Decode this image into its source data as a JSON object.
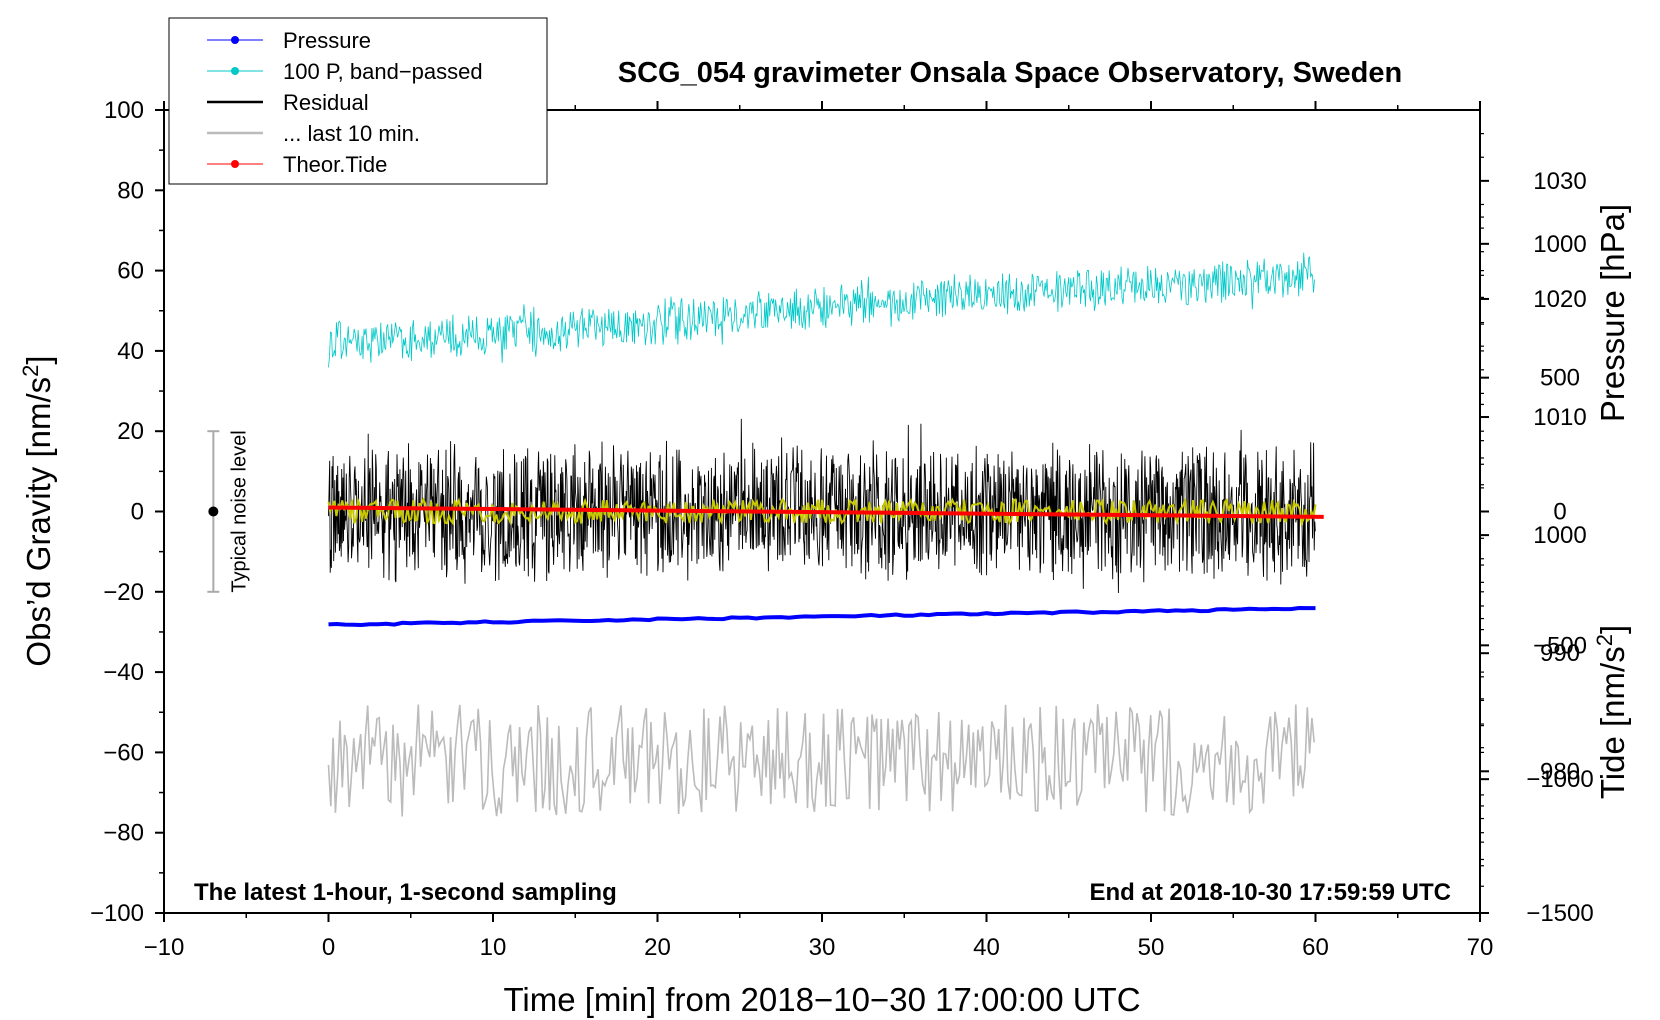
{
  "chart_data": {
    "type": "line",
    "title": "SCG_054 gravimeter Onsala Space Observatory, Sweden",
    "subtitle_left": "The latest 1-hour, 1-second sampling",
    "subtitle_right": "End at 2018-10-30 17:59:59 UTC",
    "xlabel": "Time [min] from 2018−10−30 17:00:00 UTC",
    "ylabel_left": "Obs’d Gravity [nm/s",
    "ylabel_right_top": "Pressure [hPa]",
    "ylabel_right_bottom": "Tide [nm/s",
    "unit_superscript": "2",
    "unit_close": "]",
    "xlim": [
      -10,
      70
    ],
    "ylim": [
      -100,
      100
    ],
    "pressure_axis_range": [
      968,
      1036
    ],
    "tide_axis_range": [
      -1500,
      1500
    ],
    "x_ticks": [
      {
        "value": -10,
        "label": "−10"
      },
      {
        "value": 0,
        "label": "0"
      },
      {
        "value": 10,
        "label": "10"
      },
      {
        "value": 20,
        "label": "20"
      },
      {
        "value": 30,
        "label": "30"
      },
      {
        "value": 40,
        "label": "40"
      },
      {
        "value": 50,
        "label": "50"
      },
      {
        "value": 60,
        "label": "60"
      },
      {
        "value": 70,
        "label": "70"
      }
    ],
    "y_ticks_left": [
      {
        "value": 100,
        "label": "100"
      },
      {
        "value": 80,
        "label": "80"
      },
      {
        "value": 60,
        "label": "60"
      },
      {
        "value": 40,
        "label": "40"
      },
      {
        "value": 20,
        "label": "20"
      },
      {
        "value": 0,
        "label": "0"
      },
      {
        "value": -20,
        "label": "−20"
      },
      {
        "value": -40,
        "label": "−40"
      },
      {
        "value": -60,
        "label": "−60"
      },
      {
        "value": -80,
        "label": "−80"
      },
      {
        "value": -100,
        "label": "−100"
      }
    ],
    "pressure_ticks": [
      {
        "value": 1030,
        "label": "1030"
      },
      {
        "value": 1020,
        "label": "1020"
      },
      {
        "value": 1010,
        "label": "1010"
      },
      {
        "value": 1000,
        "label": "1000"
      },
      {
        "value": 990,
        "label": "990"
      },
      {
        "value": 980,
        "label": "980"
      }
    ],
    "tide_ticks": [
      {
        "value": 1000,
        "label": "1000"
      },
      {
        "value": 500,
        "label": "500"
      },
      {
        "value": 0,
        "label": "0"
      },
      {
        "value": -500,
        "label": "−500"
      },
      {
        "value": -1000,
        "label": "−1000"
      },
      {
        "value": -1500,
        "label": "−1500"
      }
    ],
    "legend": [
      {
        "label": "Pressure",
        "color": "#0000ff",
        "marker": true
      },
      {
        "label": "100 P, band−passed",
        "color": "#00c8c8",
        "marker": true
      },
      {
        "label": "Residual",
        "color": "#000000",
        "marker": false
      },
      {
        "label": "... last 10 min.",
        "color": "#bbbbbb",
        "marker": false
      },
      {
        "label": "Theor.Tide",
        "color": "#ff0000",
        "marker": true
      }
    ],
    "noise_marker": {
      "x": -7,
      "center": 0,
      "low": -20,
      "high": 20,
      "label": "Typical noise level"
    },
    "series": [
      {
        "name": "Pressure",
        "axis": "pressure",
        "color": "#0000ff",
        "x": [
          0,
          60
        ],
        "values": [
          992.4,
          993.8
        ]
      },
      {
        "name": "100 P, band-passed",
        "axis": "left",
        "color": "#00c8c8",
        "x": [
          0,
          10,
          20,
          30,
          40,
          50,
          60
        ],
        "values": [
          42,
          44,
          47,
          51,
          54,
          56,
          59
        ],
        "amplitude": 6
      },
      {
        "name": "Residual",
        "axis": "left",
        "color": "#000000",
        "x": [
          0,
          60
        ],
        "values": [
          0,
          0
        ],
        "amplitude": 18
      },
      {
        "name": "Residual smoothed",
        "axis": "left",
        "color": "#c8c800",
        "x": [
          0,
          60
        ],
        "values": [
          0,
          0
        ],
        "amplitude": 3
      },
      {
        "name": "... last 10 min.",
        "axis": "left",
        "color": "#bbbbbb",
        "x": [
          0,
          60
        ],
        "values": [
          -62,
          -62
        ],
        "amplitude": 14
      },
      {
        "name": "Theor.Tide",
        "axis": "tide",
        "color": "#ff0000",
        "x": [
          0,
          60.5
        ],
        "values": [
          15,
          -20
        ]
      }
    ]
  }
}
